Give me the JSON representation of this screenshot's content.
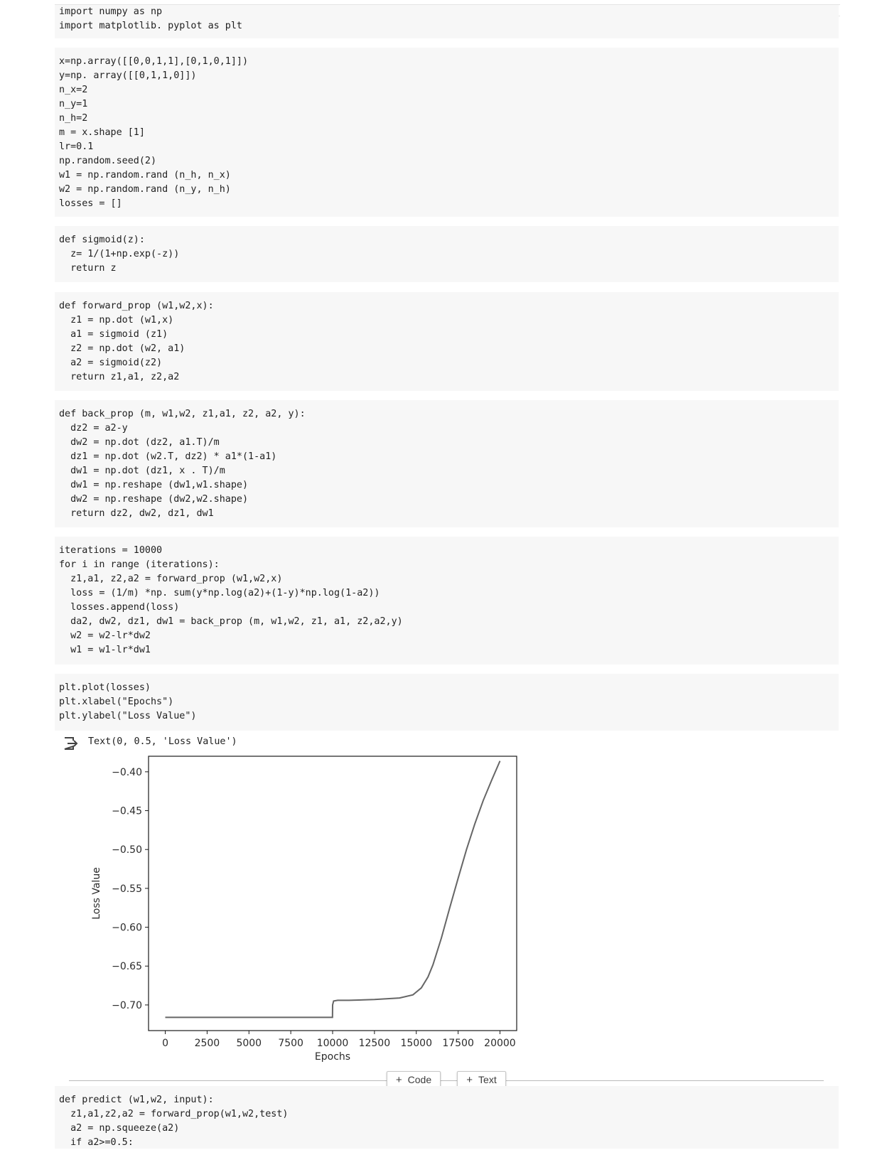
{
  "cells": [
    {
      "code": "import numpy as np\nimport matplotlib. pyplot as plt"
    },
    {
      "code": "x=np.array([[0,0,1,1],[0,1,0,1]])\ny=np. array([[0,1,1,0]])\nn_x=2\nn_y=1\nn_h=2\nm = x.shape [1]\nlr=0.1\nnp.random.seed(2)\nw1 = np.random.rand (n_h, n_x)\nw2 = np.random.rand (n_y, n_h)\nlosses = []"
    },
    {
      "code": "def sigmoid(z):\n  z= 1/(1+np.exp(-z))\n  return z"
    },
    {
      "code": "def forward_prop (w1,w2,x):\n  z1 = np.dot (w1,x)\n  a1 = sigmoid (z1)\n  z2 = np.dot (w2, a1)\n  a2 = sigmoid(z2)\n  return z1,a1, z2,a2"
    },
    {
      "code": "def back_prop (m, w1,w2, z1,a1, z2, a2, y):\n  dz2 = a2-y\n  dw2 = np.dot (dz2, a1.T)/m\n  dz1 = np.dot (w2.T, dz2) * a1*(1-a1)\n  dw1 = np.dot (dz1, x . T)/m\n  dw1 = np.reshape (dw1,w1.shape)\n  dw2 = np.reshape (dw2,w2.shape)\n  return dz2, dw2, dz1, dw1"
    },
    {
      "code": "iterations = 10000\nfor i in range (iterations):\n  z1,a1, z2,a2 = forward_prop (w1,w2,x)\n  loss = (1/m) *np. sum(y*np.log(a2)+(1-y)*np.log(1-a2))\n  losses.append(loss)\n  da2, dw2, dz1, dw1 = back_prop (m, w1,w2, z1, a1, z2,a2,y)\n  w2 = w2-lr*dw2\n  w1 = w1-lr*dw1"
    },
    {
      "code": "plt.plot(losses)\nplt.xlabel(\"Epochs\")\nplt.ylabel(\"Loss Value\")"
    },
    {
      "code": "def predict (w1,w2, input):\n  z1,a1,z2,a2 = forward_prop(w1,w2,test)\n  a2 = np.squeeze(a2)\n  if a2>=0.5:"
    }
  ],
  "output": {
    "icon": "output-redirect-icon",
    "text": "Text(0, 0.5, 'Loss Value')"
  },
  "chart_data": {
    "type": "line",
    "title": "",
    "xlabel": "Epochs",
    "ylabel": "Loss Value",
    "xlim": [
      -1000,
      21000
    ],
    "ylim": [
      -0.733,
      -0.38
    ],
    "xticks": [
      0,
      2500,
      5000,
      7500,
      10000,
      12500,
      15000,
      17500,
      20000
    ],
    "xtick_labels": [
      "0",
      "2500",
      "5000",
      "7500",
      "10000",
      "12500",
      "15000",
      "17500",
      "20000"
    ],
    "yticks": [
      -0.4,
      -0.45,
      -0.5,
      -0.55,
      -0.6,
      -0.65,
      -0.7
    ],
    "ytick_labels": [
      "−0.40",
      "−0.45",
      "−0.50",
      "−0.55",
      "−0.60",
      "−0.65",
      "−0.70"
    ],
    "grid": false,
    "line_color": "#666666",
    "series": [
      {
        "x": [
          0,
          2500,
          5000,
          7500,
          9990,
          10000,
          10060,
          10300,
          11000,
          12500,
          14000,
          14800,
          15300,
          15700,
          16000,
          16500,
          17000,
          17500,
          18000,
          18500,
          19000,
          19500,
          20000
        ],
        "y": [
          -0.716,
          -0.716,
          -0.716,
          -0.716,
          -0.716,
          -0.7,
          -0.695,
          -0.694,
          -0.694,
          -0.693,
          -0.691,
          -0.687,
          -0.678,
          -0.664,
          -0.648,
          -0.614,
          -0.575,
          -0.537,
          -0.5,
          -0.467,
          -0.437,
          -0.411,
          -0.386
        ]
      }
    ]
  },
  "divider": {
    "code_button": "Code",
    "text_button": "Text",
    "plus_glyph": "+"
  }
}
